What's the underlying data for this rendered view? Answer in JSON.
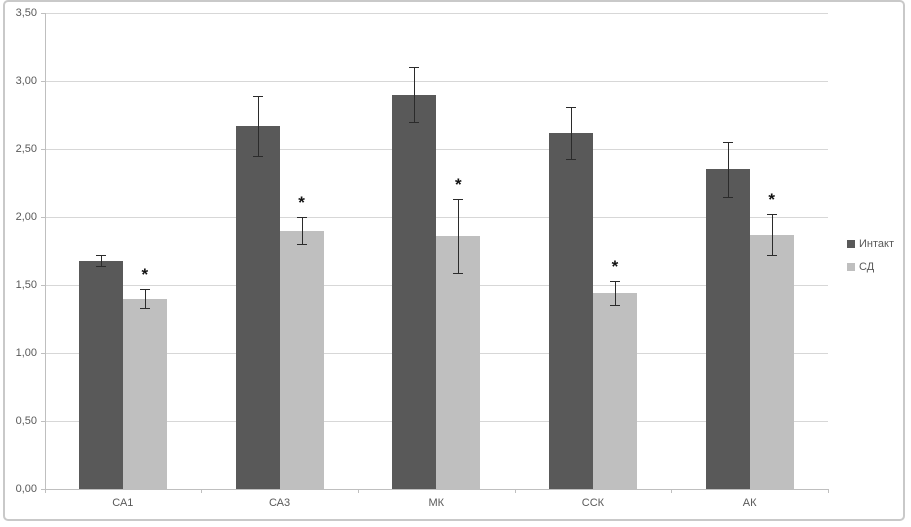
{
  "chart_data": {
    "type": "bar",
    "title": "",
    "xlabel": "",
    "ylabel": "",
    "categories": [
      "СА1",
      "СА3",
      "МК",
      "ССК",
      "АК"
    ],
    "series": [
      {
        "name": "Интакт",
        "color": "#595959",
        "values": [
          1.68,
          2.67,
          2.9,
          2.62,
          2.35
        ],
        "errors": [
          0.04,
          0.22,
          0.2,
          0.19,
          0.2
        ],
        "significance": [
          "",
          "",
          "",
          "",
          ""
        ]
      },
      {
        "name": "СД",
        "color": "#bfbfbf",
        "values": [
          1.4,
          1.9,
          1.86,
          1.44,
          1.87
        ],
        "errors": [
          0.07,
          0.1,
          0.27,
          0.09,
          0.15
        ],
        "significance": [
          "*",
          "*",
          "*",
          "*",
          "*"
        ]
      }
    ],
    "ylim": [
      0,
      3.5
    ],
    "ytick_step": 0.5,
    "ytick_labels": [
      "0,00",
      "0,50",
      "1,00",
      "1,50",
      "2,00",
      "2,50",
      "3,00",
      "3,50"
    ],
    "grid": true,
    "legend_position": "right",
    "error_bar_color": "#2b2b2b",
    "gridline_color": "#d7d7d7",
    "axis_color": "#bfbfbf",
    "text_color": "#595959"
  }
}
